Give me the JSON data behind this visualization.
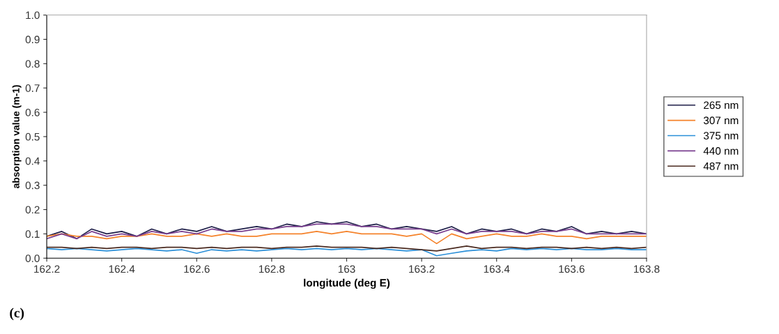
{
  "chart_data": {
    "type": "line",
    "xlabel": "longitude (deg E)",
    "ylabel": "absorption value (m-1)",
    "x": [
      162.2,
      162.24,
      162.28,
      162.32,
      162.36,
      162.4,
      162.44,
      162.48,
      162.52,
      162.56,
      162.6,
      162.64,
      162.68,
      162.72,
      162.76,
      162.8,
      162.84,
      162.88,
      162.92,
      162.96,
      163,
      163.04,
      163.08,
      163.12,
      163.16,
      163.2,
      163.24,
      163.28,
      163.32,
      163.36,
      163.4,
      163.44,
      163.48,
      163.52,
      163.56,
      163.6,
      163.64,
      163.68,
      163.72,
      163.76,
      163.8
    ],
    "series": [
      {
        "name": "265 nm",
        "color": "#1e1e48",
        "values": [
          0.09,
          0.11,
          0.08,
          0.12,
          0.1,
          0.11,
          0.09,
          0.12,
          0.1,
          0.12,
          0.11,
          0.13,
          0.11,
          0.12,
          0.13,
          0.12,
          0.14,
          0.13,
          0.15,
          0.14,
          0.15,
          0.13,
          0.14,
          0.12,
          0.13,
          0.12,
          0.11,
          0.13,
          0.1,
          0.12,
          0.11,
          0.12,
          0.1,
          0.12,
          0.11,
          0.13,
          0.1,
          0.11,
          0.1,
          0.11,
          0.1
        ]
      },
      {
        "name": "307 nm",
        "color": "#f5822a",
        "values": [
          0.09,
          0.1,
          0.09,
          0.09,
          0.08,
          0.09,
          0.09,
          0.1,
          0.09,
          0.09,
          0.1,
          0.09,
          0.1,
          0.09,
          0.09,
          0.1,
          0.1,
          0.1,
          0.11,
          0.1,
          0.11,
          0.1,
          0.1,
          0.1,
          0.09,
          0.1,
          0.06,
          0.1,
          0.08,
          0.09,
          0.1,
          0.09,
          0.09,
          0.1,
          0.09,
          0.09,
          0.08,
          0.09,
          0.09,
          0.09,
          0.09
        ]
      },
      {
        "name": "375 nm",
        "color": "#2a8fd8",
        "values": [
          0.04,
          0.035,
          0.04,
          0.035,
          0.03,
          0.035,
          0.04,
          0.035,
          0.03,
          0.035,
          0.02,
          0.035,
          0.03,
          0.035,
          0.03,
          0.035,
          0.04,
          0.035,
          0.04,
          0.035,
          0.04,
          0.035,
          0.04,
          0.035,
          0.03,
          0.035,
          0.01,
          0.02,
          0.03,
          0.035,
          0.03,
          0.04,
          0.035,
          0.04,
          0.035,
          0.04,
          0.035,
          0.035,
          0.04,
          0.035,
          0.035
        ]
      },
      {
        "name": "440 nm",
        "color": "#7a3f8f",
        "values": [
          0.08,
          0.1,
          0.08,
          0.11,
          0.09,
          0.1,
          0.09,
          0.11,
          0.1,
          0.11,
          0.1,
          0.12,
          0.11,
          0.11,
          0.12,
          0.12,
          0.13,
          0.13,
          0.14,
          0.14,
          0.14,
          0.13,
          0.13,
          0.12,
          0.12,
          0.12,
          0.1,
          0.12,
          0.1,
          0.11,
          0.11,
          0.11,
          0.1,
          0.11,
          0.11,
          0.12,
          0.1,
          0.1,
          0.1,
          0.1,
          0.1
        ]
      },
      {
        "name": "487 nm",
        "color": "#4a2a20",
        "values": [
          0.045,
          0.045,
          0.04,
          0.045,
          0.04,
          0.045,
          0.045,
          0.04,
          0.045,
          0.045,
          0.04,
          0.045,
          0.04,
          0.045,
          0.045,
          0.04,
          0.045,
          0.045,
          0.05,
          0.045,
          0.045,
          0.045,
          0.04,
          0.045,
          0.04,
          0.035,
          0.03,
          0.04,
          0.05,
          0.04,
          0.045,
          0.045,
          0.04,
          0.045,
          0.045,
          0.04,
          0.045,
          0.04,
          0.045,
          0.04,
          0.045
        ]
      }
    ],
    "xlim": [
      162.2,
      163.8
    ],
    "xticks": [
      162.2,
      162.4,
      162.6,
      162.8,
      163,
      163.2,
      163.4,
      163.6,
      163.8
    ],
    "ylim": [
      0,
      1
    ],
    "yticks": [
      {
        "value": 0,
        "label": "0.0"
      },
      {
        "value": 0.1,
        "label": "0.1"
      },
      {
        "value": 0.2,
        "label": "0.2"
      },
      {
        "value": 0.3,
        "label": "0.3"
      },
      {
        "value": 0.4,
        "label": "0.4"
      },
      {
        "value": 0.5,
        "label": "0.5"
      },
      {
        "value": 0.6,
        "label": "0.6"
      },
      {
        "value": 0.7,
        "label": "0.7"
      },
      {
        "value": 0.8,
        "label": "0.8"
      },
      {
        "value": 0.9,
        "label": "0.9"
      },
      {
        "value": 1,
        "label": "1.0"
      }
    ],
    "grid": false,
    "legend": "right",
    "marker": "none",
    "line_style": "solid",
    "annotations": [
      "(c)"
    ]
  }
}
